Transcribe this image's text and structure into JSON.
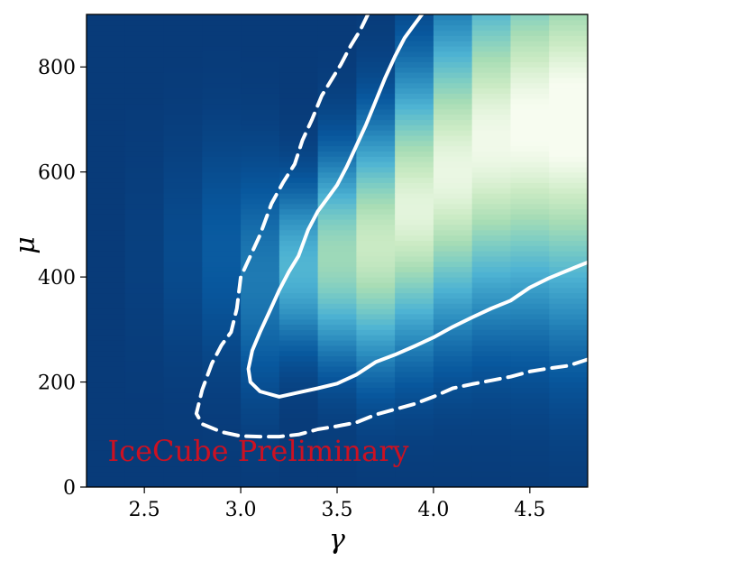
{
  "chart_data": {
    "type": "heatmap",
    "title": "",
    "xlabel": "γ",
    "ylabel": "μ",
    "xlim": [
      2.2,
      4.8
    ],
    "ylim": [
      0,
      900
    ],
    "xticks": [
      2.5,
      3.0,
      3.5,
      4.0,
      4.5
    ],
    "xtick_labels": [
      "2.5",
      "3.0",
      "3.5",
      "4.0",
      "4.5"
    ],
    "yticks": [
      0,
      200,
      400,
      600,
      800
    ],
    "ytick_labels": [
      "0",
      "200",
      "400",
      "600",
      "800"
    ],
    "grid": false,
    "colormap": "GnBu_r",
    "colors": {
      "low": "#08306b",
      "mid": "#4fb3d3",
      "high": "#f7fcf0",
      "contour": "#ffffff",
      "watermark": "#cc1122"
    },
    "gamma_bins": [
      2.2,
      2.4,
      2.6,
      2.8,
      3.0,
      3.2,
      3.4,
      3.6,
      3.8,
      4.0,
      4.2,
      4.4,
      4.6,
      4.8
    ],
    "peak_mu_per_bin": [
      450,
      450,
      450,
      450,
      400,
      420,
      440,
      460,
      530,
      600,
      660,
      690,
      700
    ],
    "peak_level_per_bin": [
      0.0,
      0.02,
      0.06,
      0.12,
      0.22,
      0.45,
      0.68,
      0.82,
      0.9,
      0.92,
      0.94,
      0.97,
      1.0
    ],
    "width_mu_per_bin": [
      200,
      200,
      200,
      200,
      200,
      140,
      170,
      200,
      230,
      260,
      290,
      310,
      330
    ],
    "contours": [
      {
        "style": "solid",
        "points": [
          [
            3.94,
            900
          ],
          [
            3.9,
            880
          ],
          [
            3.85,
            855
          ],
          [
            3.8,
            820
          ],
          [
            3.75,
            780
          ],
          [
            3.7,
            735
          ],
          [
            3.65,
            690
          ],
          [
            3.6,
            650
          ],
          [
            3.55,
            610
          ],
          [
            3.5,
            575
          ],
          [
            3.45,
            550
          ],
          [
            3.4,
            525
          ],
          [
            3.35,
            490
          ],
          [
            3.3,
            440
          ],
          [
            3.25,
            410
          ],
          [
            3.2,
            375
          ],
          [
            3.15,
            335
          ],
          [
            3.1,
            295
          ],
          [
            3.06,
            260
          ],
          [
            3.04,
            225
          ],
          [
            3.05,
            200
          ],
          [
            3.1,
            182
          ],
          [
            3.2,
            172
          ],
          [
            3.3,
            180
          ],
          [
            3.4,
            188
          ],
          [
            3.5,
            197
          ],
          [
            3.6,
            214
          ],
          [
            3.7,
            238
          ],
          [
            3.8,
            252
          ],
          [
            3.9,
            268
          ],
          [
            4.0,
            285
          ],
          [
            4.1,
            305
          ],
          [
            4.2,
            323
          ],
          [
            4.3,
            340
          ],
          [
            4.4,
            355
          ],
          [
            4.5,
            380
          ],
          [
            4.6,
            398
          ],
          [
            4.7,
            413
          ],
          [
            4.8,
            428
          ]
        ]
      },
      {
        "style": "dashed",
        "points": [
          [
            3.66,
            900
          ],
          [
            3.62,
            870
          ],
          [
            3.57,
            840
          ],
          [
            3.52,
            805
          ],
          [
            3.47,
            775
          ],
          [
            3.42,
            745
          ],
          [
            3.37,
            700
          ],
          [
            3.32,
            660
          ],
          [
            3.28,
            615
          ],
          [
            3.22,
            580
          ],
          [
            3.16,
            540
          ],
          [
            3.1,
            480
          ],
          [
            3.05,
            440
          ],
          [
            3.0,
            400
          ],
          [
            2.98,
            340
          ],
          [
            2.95,
            295
          ],
          [
            2.9,
            270
          ],
          [
            2.85,
            235
          ],
          [
            2.8,
            185
          ],
          [
            2.77,
            140
          ],
          [
            2.8,
            120
          ],
          [
            2.9,
            105
          ],
          [
            3.0,
            97
          ],
          [
            3.1,
            96
          ],
          [
            3.2,
            96
          ],
          [
            3.3,
            100
          ],
          [
            3.4,
            110
          ],
          [
            3.5,
            116
          ],
          [
            3.6,
            123
          ],
          [
            3.7,
            138
          ],
          [
            3.8,
            148
          ],
          [
            3.9,
            158
          ],
          [
            4.0,
            172
          ],
          [
            4.1,
            188
          ],
          [
            4.2,
            196
          ],
          [
            4.3,
            203
          ],
          [
            4.4,
            210
          ],
          [
            4.5,
            220
          ],
          [
            4.6,
            226
          ],
          [
            4.7,
            231
          ],
          [
            4.8,
            243
          ]
        ]
      }
    ],
    "annotations": [
      {
        "text": "IceCube Preliminary",
        "x": 2.31,
        "y": 50
      }
    ]
  }
}
